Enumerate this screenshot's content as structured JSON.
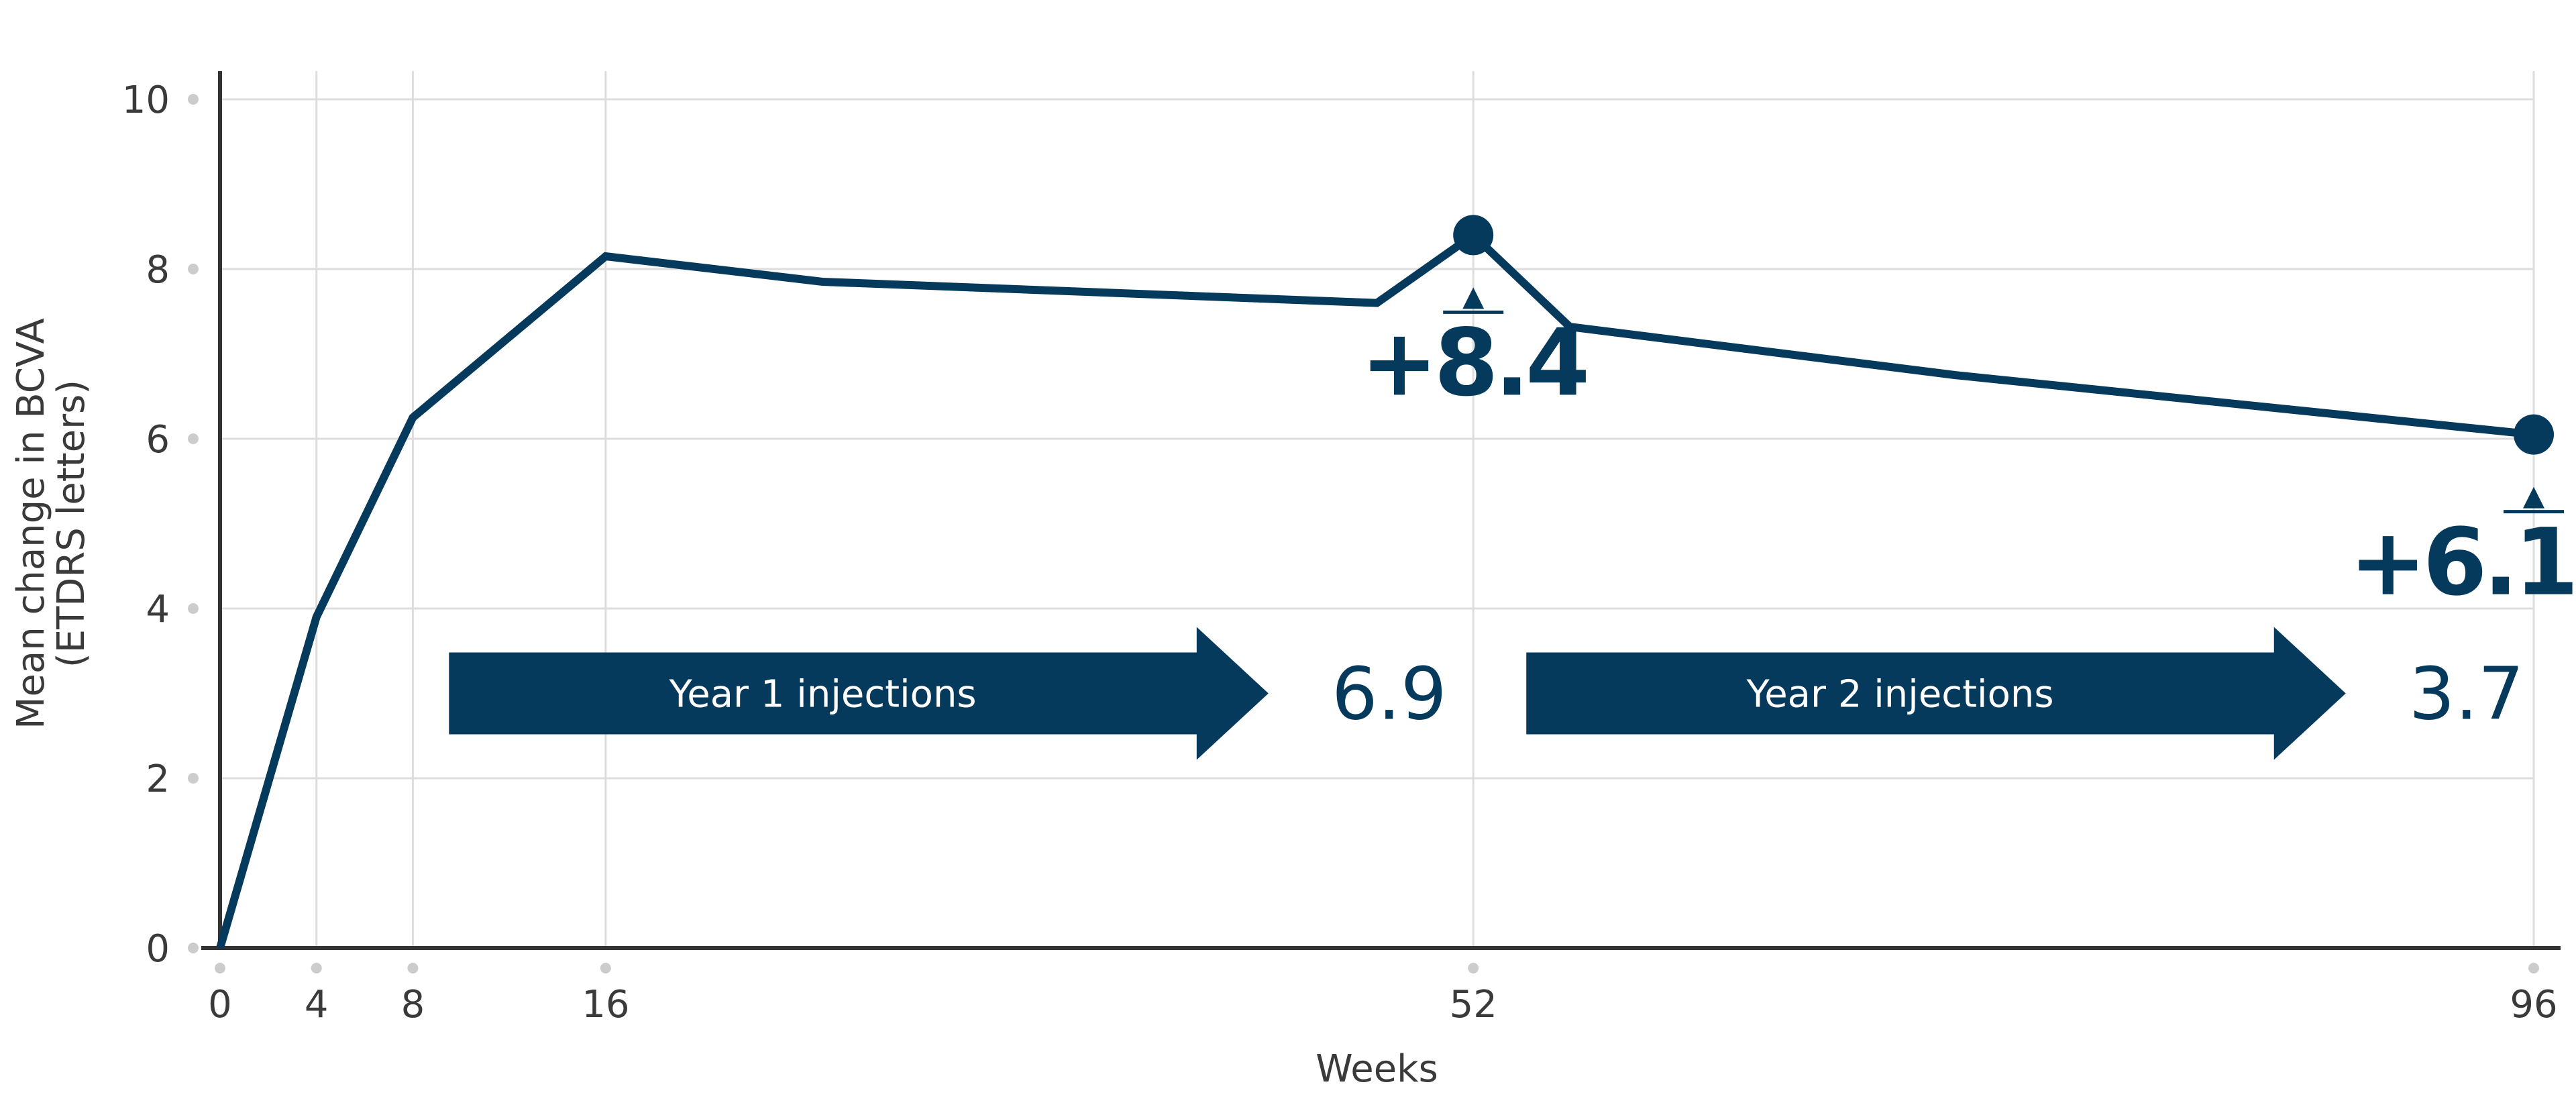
{
  "chart_data": {
    "type": "line",
    "xlabel": "Weeks",
    "ylabel": [
      "Mean change in BCVA",
      "(ETDRS letters)"
    ],
    "x_ticks": [
      0,
      4,
      8,
      16,
      52,
      96
    ],
    "y_ticks": [
      0,
      2,
      4,
      6,
      8,
      10
    ],
    "xlim": [
      0,
      96
    ],
    "ylim": [
      0,
      10
    ],
    "grid": true,
    "series": [
      {
        "x": [
          0,
          4,
          8,
          16,
          25,
          48,
          52,
          56,
          72,
          96
        ],
        "y": [
          0,
          3.9,
          6.25,
          8.15,
          7.85,
          7.6,
          8.4,
          7.32,
          6.75,
          6.05
        ]
      }
    ],
    "highlight_points": [
      {
        "x": 52,
        "y": 8.4,
        "label": "+8.4"
      },
      {
        "x": 96,
        "y": 6.05,
        "label": "+6.1"
      }
    ],
    "annotations": [
      {
        "text": "Year 1 injections",
        "value": "6.9",
        "x_from": 9.5,
        "x_to": 43.5
      },
      {
        "text": "Year 2 injections",
        "value": "3.7",
        "x_from": 54.2,
        "x_to": 88.2
      }
    ],
    "colors": {
      "line": "#053a5c",
      "grid": "#dddddd",
      "axis": "#333333",
      "tick_dot": "#cccccc"
    }
  }
}
